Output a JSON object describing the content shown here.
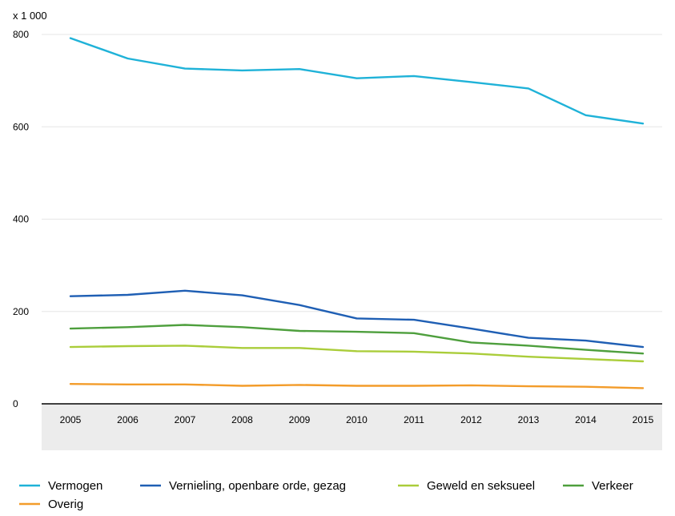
{
  "chart_data": {
    "type": "line",
    "title": "",
    "xlabel": "",
    "ylabel": "",
    "y_unit_label": "x 1 000",
    "ylim": [
      0,
      800
    ],
    "y_ticks": [
      0,
      200,
      400,
      600,
      800
    ],
    "grid": "horizontal",
    "legend_position": "bottom",
    "x": [
      "2005",
      "2006",
      "2007",
      "2008",
      "2009",
      "2010",
      "2011",
      "2012",
      "2013",
      "2014",
      "2015"
    ],
    "series": [
      {
        "name": "Vermogen",
        "color": "#1fb2d8",
        "values": [
          792,
          748,
          726,
          722,
          725,
          705,
          710,
          697,
          683,
          625,
          607
        ]
      },
      {
        "name": "Vernieling, openbare orde, gezag",
        "color": "#1f5fb4",
        "values": [
          233,
          236,
          245,
          235,
          214,
          185,
          182,
          163,
          143,
          137,
          123
        ]
      },
      {
        "name": "Geweld en seksueel",
        "color": "#aacd3a",
        "values": [
          123,
          125,
          126,
          121,
          121,
          114,
          113,
          109,
          102,
          97,
          92
        ]
      },
      {
        "name": "Verkeer",
        "color": "#4e9f3d",
        "values": [
          163,
          166,
          171,
          166,
          158,
          156,
          153,
          133,
          126,
          117,
          109
        ]
      },
      {
        "name": "Overig",
        "color": "#f39c2a",
        "values": [
          43,
          42,
          42,
          39,
          41,
          39,
          39,
          40,
          38,
          37,
          34
        ]
      }
    ]
  }
}
